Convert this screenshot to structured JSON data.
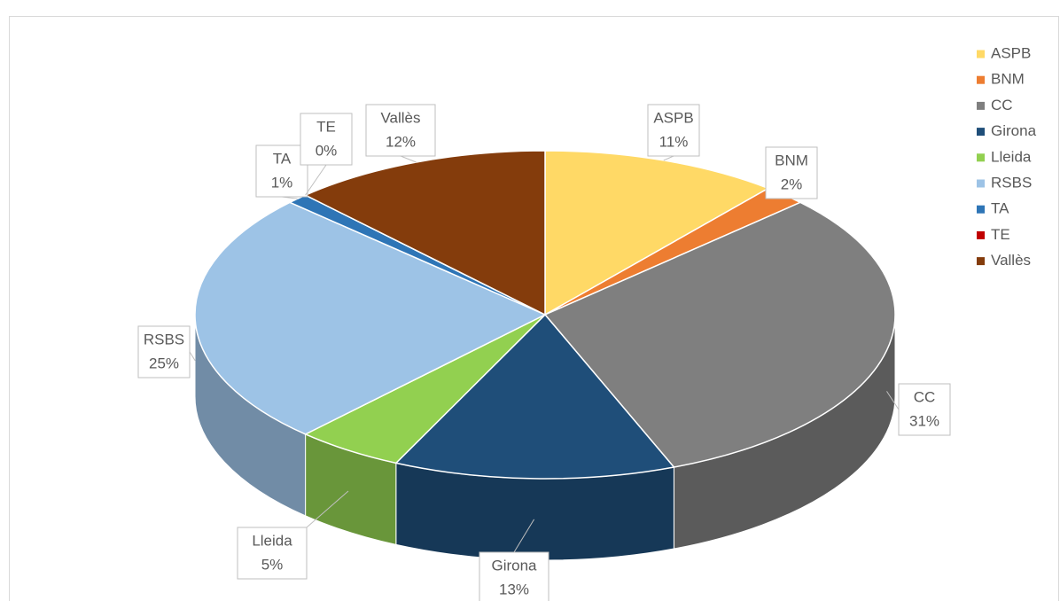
{
  "chart_data": {
    "type": "pie",
    "categories": [
      "ASPB",
      "BNM",
      "CC",
      "Girona",
      "Lleida",
      "RSBS",
      "TA",
      "TE",
      "Vallès"
    ],
    "values": [
      11,
      2,
      31,
      13,
      5,
      25,
      1,
      0,
      12
    ],
    "value_labels": [
      "11%",
      "2%",
      "31%",
      "13%",
      "5%",
      "25%",
      "1%",
      "0%",
      "12%"
    ],
    "colors": [
      "#ffd966",
      "#ed7d31",
      "#7f7f7f",
      "#1f4e79",
      "#92d050",
      "#9dc3e6",
      "#2e75b6",
      "#c00000",
      "#843c0c"
    ],
    "legend": "right"
  }
}
